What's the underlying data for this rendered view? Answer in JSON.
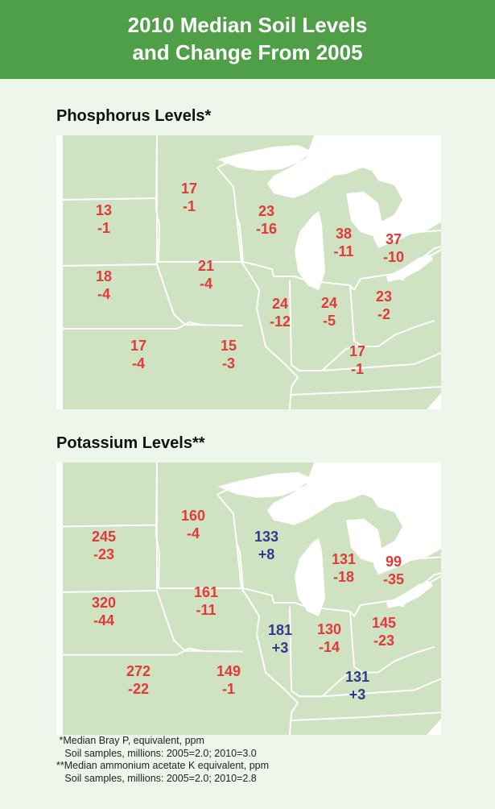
{
  "header": {
    "line1": "2010 Median Soil Levels",
    "line2": "and Change From 2005"
  },
  "colors": {
    "header_bg": "#4f9e48",
    "decrease": "#e03a3a",
    "increase": "#2e3b8c",
    "land": "#cfe2c2",
    "lake": "#ffffff"
  },
  "phosphorus": {
    "title": "Phosphorus Levels*",
    "regions": [
      {
        "level": "13",
        "change": "-1",
        "trend": "decrease"
      },
      {
        "level": "17",
        "change": "-1",
        "trend": "decrease"
      },
      {
        "level": "23",
        "change": "-16",
        "trend": "decrease"
      },
      {
        "level": "38",
        "change": "-11",
        "trend": "decrease"
      },
      {
        "level": "37",
        "change": "-10",
        "trend": "decrease"
      },
      {
        "level": "18",
        "change": "-4",
        "trend": "decrease"
      },
      {
        "level": "21",
        "change": "-4",
        "trend": "decrease"
      },
      {
        "level": "24",
        "change": "-12",
        "trend": "decrease"
      },
      {
        "level": "24",
        "change": "-5",
        "trend": "decrease"
      },
      {
        "level": "23",
        "change": "-2",
        "trend": "decrease"
      },
      {
        "level": "17",
        "change": "-4",
        "trend": "decrease"
      },
      {
        "level": "15",
        "change": "-3",
        "trend": "decrease"
      },
      {
        "level": "17",
        "change": "-1",
        "trend": "decrease"
      }
    ]
  },
  "potassium": {
    "title": "Potassium Levels**",
    "regions": [
      {
        "level": "245",
        "change": "-23",
        "trend": "decrease"
      },
      {
        "level": "160",
        "change": "-4",
        "trend": "decrease"
      },
      {
        "level": "133",
        "change": "+8",
        "trend": "increase"
      },
      {
        "level": "131",
        "change": "-18",
        "trend": "decrease"
      },
      {
        "level": "99",
        "change": "-35",
        "trend": "decrease"
      },
      {
        "level": "320",
        "change": "-44",
        "trend": "decrease"
      },
      {
        "level": "161",
        "change": "-11",
        "trend": "decrease"
      },
      {
        "level": "181",
        "change": "+3",
        "trend": "increase"
      },
      {
        "level": "130",
        "change": "-14",
        "trend": "decrease"
      },
      {
        "level": "145",
        "change": "-23",
        "trend": "decrease"
      },
      {
        "level": "272",
        "change": "-22",
        "trend": "decrease"
      },
      {
        "level": "149",
        "change": "-1",
        "trend": "decrease"
      },
      {
        "level": "131",
        "change": "+3",
        "trend": "increase"
      }
    ]
  },
  "footnotes": [
    " *Median Bray P, equivalent, ppm",
    "   Soil samples, millions: 2005=2.0; 2010=3.0",
    "**Median ammonium acetate K equivalent, ppm",
    "   Soil samples, millions: 2005=2.0; 2010=2.8"
  ]
}
